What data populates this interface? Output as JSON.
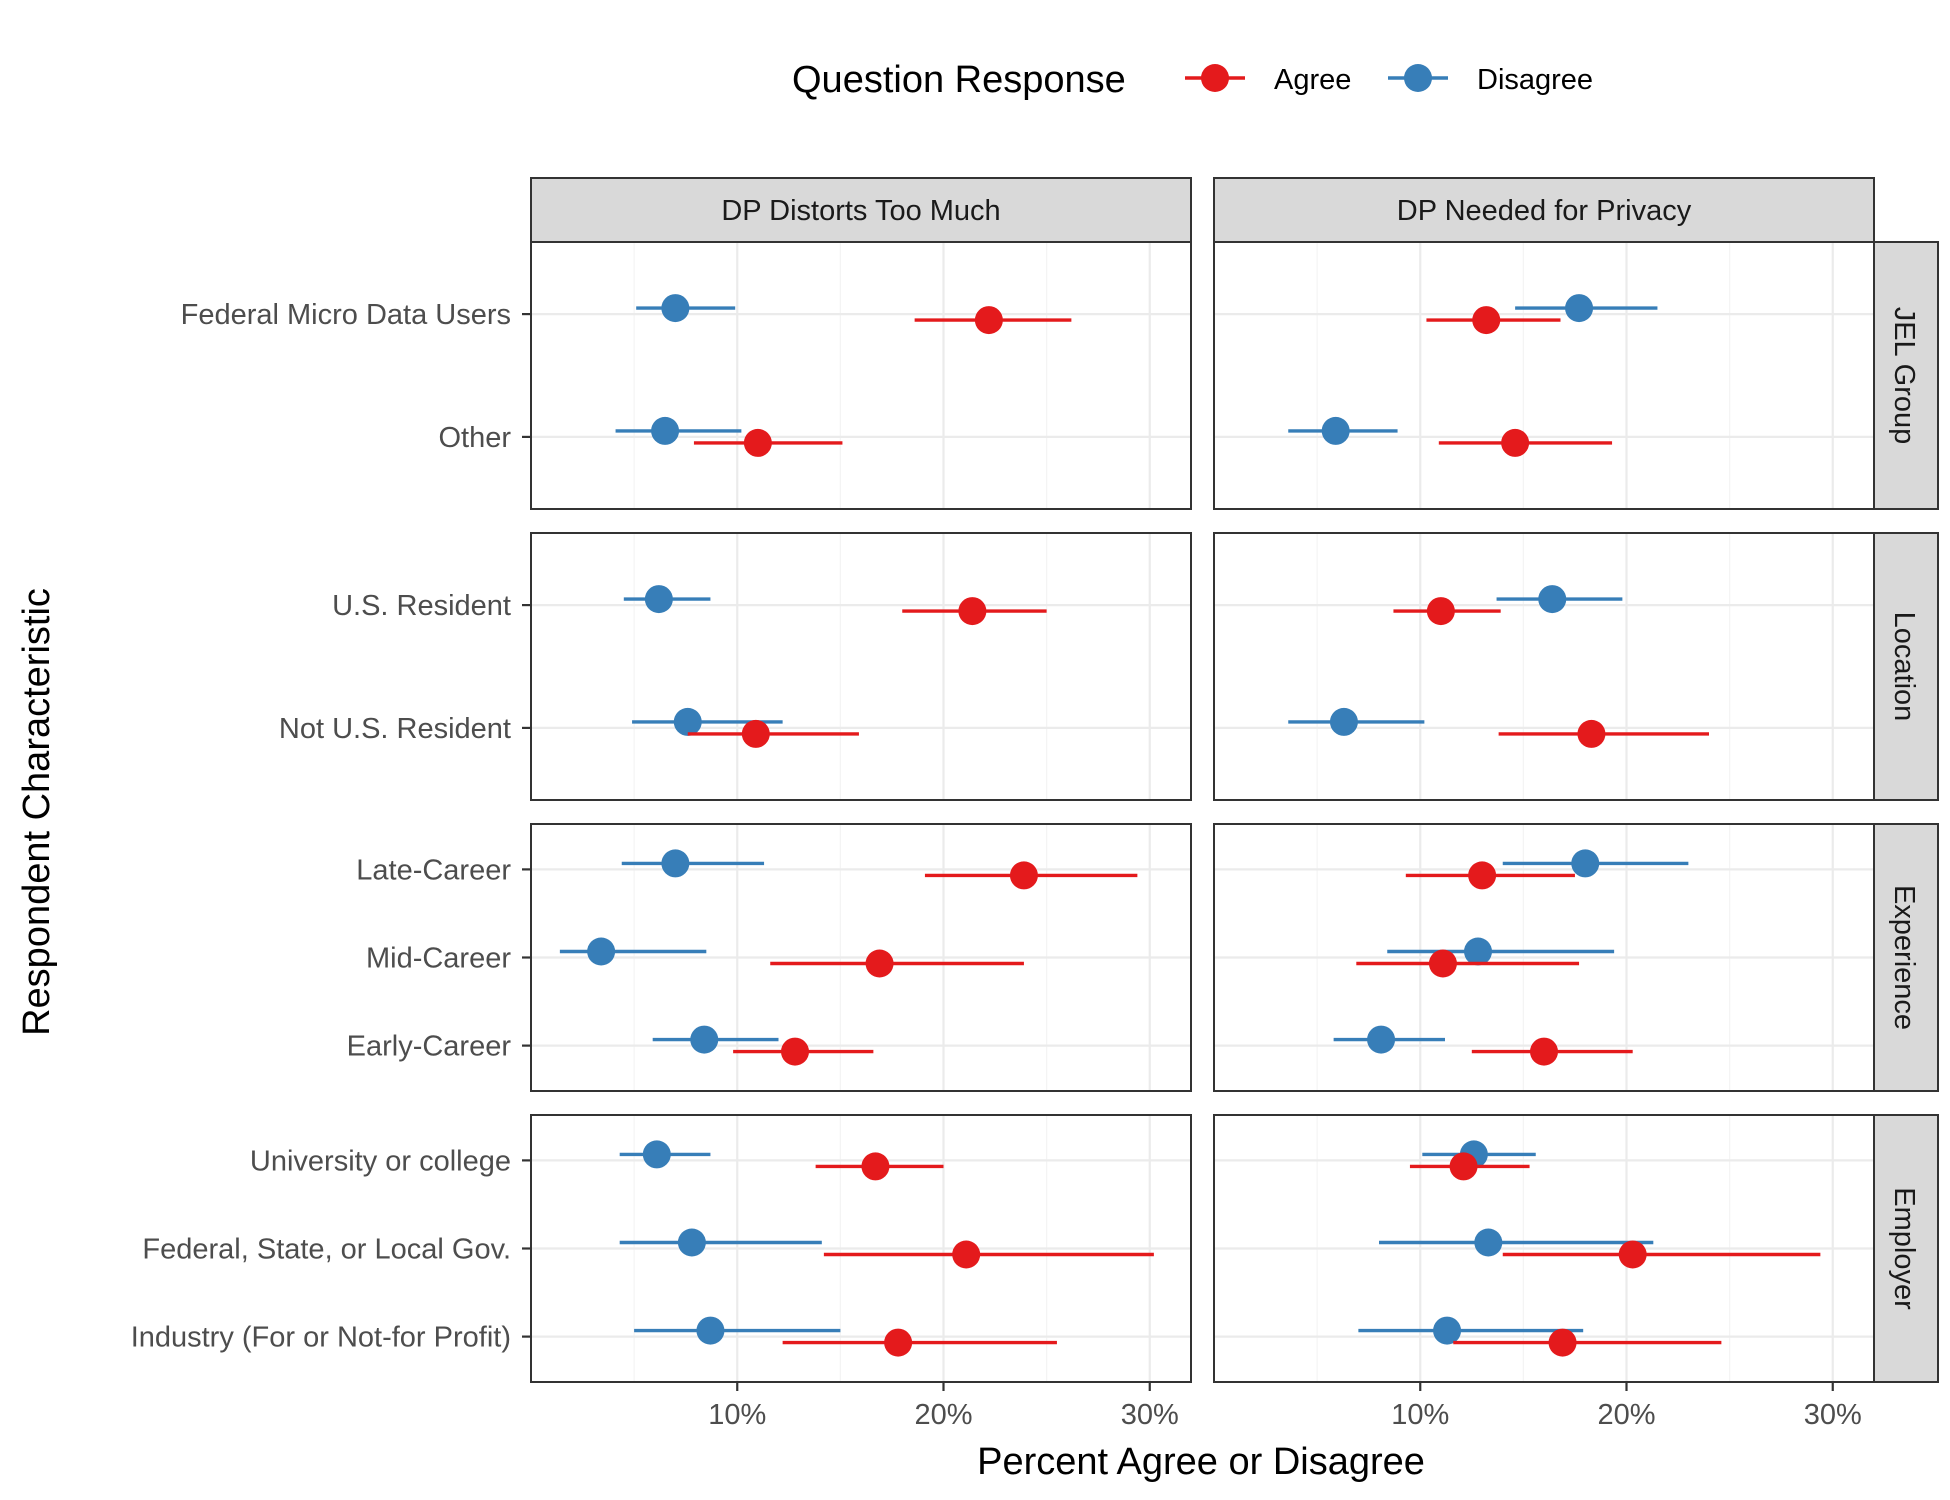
{
  "chart_data": {
    "type": "scatter",
    "subtype": "dot-and-whisker, faceted",
    "xlabel": "Percent Agree or Disagree",
    "ylabel": "Respondent Characteristic",
    "x_ticks": [
      "10%",
      "20%",
      "30%"
    ],
    "x_tick_values": [
      10,
      20,
      30
    ],
    "xlim": [
      0,
      32
    ],
    "grid": true,
    "legend": {
      "title": "Question Response",
      "placement": "top",
      "entries": [
        {
          "name": "Agree",
          "color": "#e41a1c"
        },
        {
          "name": "Disagree",
          "color": "#377eb8"
        }
      ]
    },
    "columns": [
      "DP Distorts Too Much",
      "DP Needed for Privacy"
    ],
    "rows": [
      {
        "name": "JEL Group",
        "categories": [
          "Federal Micro Data Users",
          "Other"
        ],
        "panels": [
          {
            "Agree": [
              {
                "est": 22.2,
                "lo": 18.6,
                "hi": 26.2
              },
              {
                "est": 11.0,
                "lo": 7.9,
                "hi": 15.1
              }
            ],
            "Disagree": [
              {
                "est": 7.0,
                "lo": 5.1,
                "hi": 9.9
              },
              {
                "est": 6.5,
                "lo": 4.1,
                "hi": 10.2
              }
            ]
          },
          {
            "Agree": [
              {
                "est": 13.2,
                "lo": 10.3,
                "hi": 16.8
              },
              {
                "est": 14.6,
                "lo": 10.9,
                "hi": 19.3
              }
            ],
            "Disagree": [
              {
                "est": 17.7,
                "lo": 14.6,
                "hi": 21.5
              },
              {
                "est": 5.9,
                "lo": 3.6,
                "hi": 8.9
              }
            ]
          }
        ]
      },
      {
        "name": "Location",
        "categories": [
          "U.S. Resident",
          "Not U.S. Resident"
        ],
        "panels": [
          {
            "Agree": [
              {
                "est": 21.4,
                "lo": 18.0,
                "hi": 25.0
              },
              {
                "est": 10.9,
                "lo": 7.6,
                "hi": 15.9
              }
            ],
            "Disagree": [
              {
                "est": 6.2,
                "lo": 4.5,
                "hi": 8.7
              },
              {
                "est": 7.6,
                "lo": 4.9,
                "hi": 12.2
              }
            ]
          },
          {
            "Agree": [
              {
                "est": 11.0,
                "lo": 8.7,
                "hi": 13.9
              },
              {
                "est": 18.3,
                "lo": 13.8,
                "hi": 24.0
              }
            ],
            "Disagree": [
              {
                "est": 16.4,
                "lo": 13.7,
                "hi": 19.8
              },
              {
                "est": 6.3,
                "lo": 3.6,
                "hi": 10.2
              }
            ]
          }
        ]
      },
      {
        "name": "Experience",
        "categories": [
          "Late-Career",
          "Mid-Career",
          "Early-Career"
        ],
        "panels": [
          {
            "Agree": [
              {
                "est": 23.9,
                "lo": 19.1,
                "hi": 29.4
              },
              {
                "est": 16.9,
                "lo": 11.6,
                "hi": 23.9
              },
              {
                "est": 12.8,
                "lo": 9.8,
                "hi": 16.6
              }
            ],
            "Disagree": [
              {
                "est": 7.0,
                "lo": 4.4,
                "hi": 11.3
              },
              {
                "est": 3.4,
                "lo": 1.4,
                "hi": 8.5
              },
              {
                "est": 8.4,
                "lo": 5.9,
                "hi": 12.0
              }
            ]
          },
          {
            "Agree": [
              {
                "est": 13.0,
                "lo": 9.3,
                "hi": 17.5
              },
              {
                "est": 11.1,
                "lo": 6.9,
                "hi": 17.7
              },
              {
                "est": 16.0,
                "lo": 12.5,
                "hi": 20.3
              }
            ],
            "Disagree": [
              {
                "est": 18.0,
                "lo": 14.0,
                "hi": 23.0
              },
              {
                "est": 12.8,
                "lo": 8.4,
                "hi": 19.4
              },
              {
                "est": 8.1,
                "lo": 5.8,
                "hi": 11.2
              }
            ]
          }
        ]
      },
      {
        "name": "Employer",
        "categories": [
          "University or college",
          "Federal, State, or Local Gov.",
          "Industry (For or Not-for Profit)"
        ],
        "panels": [
          {
            "Agree": [
              {
                "est": 16.7,
                "lo": 13.8,
                "hi": 20.0
              },
              {
                "est": 21.1,
                "lo": 14.2,
                "hi": 30.2
              },
              {
                "est": 17.8,
                "lo": 12.2,
                "hi": 25.5
              }
            ],
            "Disagree": [
              {
                "est": 6.1,
                "lo": 4.3,
                "hi": 8.7
              },
              {
                "est": 7.8,
                "lo": 4.3,
                "hi": 14.1
              },
              {
                "est": 8.7,
                "lo": 5.0,
                "hi": 15.0
              }
            ]
          },
          {
            "Agree": [
              {
                "est": 12.1,
                "lo": 9.5,
                "hi": 15.3
              },
              {
                "est": 20.3,
                "lo": 14.0,
                "hi": 29.4
              },
              {
                "est": 16.9,
                "lo": 11.6,
                "hi": 24.6
              }
            ],
            "Disagree": [
              {
                "est": 12.6,
                "lo": 10.1,
                "hi": 15.6
              },
              {
                "est": 13.3,
                "lo": 8.0,
                "hi": 21.3
              },
              {
                "est": 11.3,
                "lo": 7.0,
                "hi": 17.9
              }
            ]
          }
        ]
      }
    ]
  }
}
